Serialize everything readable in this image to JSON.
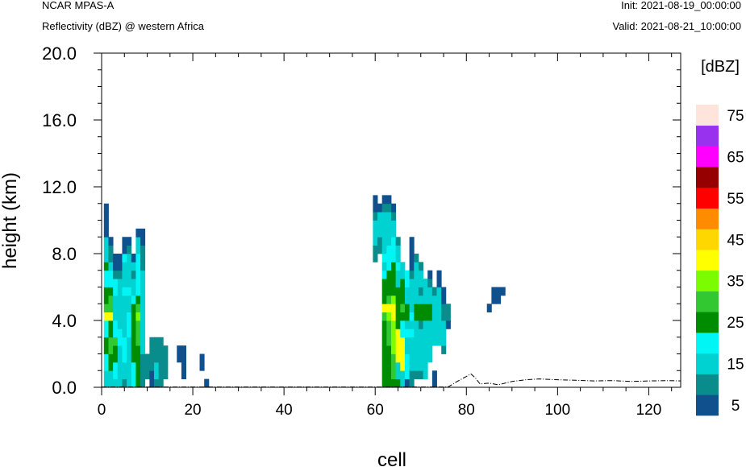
{
  "header": {
    "left_line1": "NCAR MPAS-A",
    "left_line2": "Reflectivity (dBZ) @ western Africa",
    "right_line1": "Init: 2021-08-19_00:00:00",
    "right_line2": "Valid: 2021-08-21_10:00:00"
  },
  "chart_data": {
    "type": "heatmap",
    "title": "Reflectivity (dBZ) @ western Africa",
    "xlabel": "cell",
    "ylabel": "height (km)",
    "xlim": [
      0,
      127
    ],
    "ylim": [
      0,
      20
    ],
    "x_ticks": [
      "0",
      "20",
      "40",
      "60",
      "80",
      "100",
      "120"
    ],
    "y_ticks": [
      "0.0",
      "4.0",
      "8.0",
      "12.0",
      "16.0",
      "20.0"
    ],
    "colorbar": {
      "title": "[dBZ]",
      "levels": [
        5,
        10,
        15,
        20,
        25,
        30,
        35,
        40,
        45,
        50,
        55,
        60,
        65,
        70,
        75
      ],
      "labels": [
        "5",
        "15",
        "25",
        "35",
        "45",
        "55",
        "65",
        "75"
      ],
      "colors": [
        "#10508c",
        "#088c8c",
        "#00d2d2",
        "#00f5f5",
        "#008c00",
        "#32c832",
        "#7cfc00",
        "#ffff00",
        "#ffd700",
        "#ff8c00",
        "#ff0000",
        "#960000",
        "#ff00ff",
        "#9932ee",
        "#ffe4dc"
      ]
    },
    "cell_height_km": 0.5,
    "columns": [
      {
        "x": 1,
        "bottom": 0,
        "levels": [
          3,
          3,
          4,
          4,
          5,
          5,
          4,
          4,
          8,
          6,
          5,
          5,
          4,
          4,
          5,
          3,
          3,
          3,
          1,
          1,
          1,
          1
        ]
      },
      {
        "x": 2,
        "bottom": 0,
        "levels": [
          3,
          3,
          5,
          5,
          6,
          6,
          5,
          5,
          8,
          6,
          6,
          5,
          4,
          4,
          3,
          2,
          2,
          1
        ]
      },
      {
        "x": 3,
        "bottom": 0,
        "levels": [
          3,
          4,
          4,
          5,
          5,
          6,
          4,
          4,
          3,
          3,
          3,
          4,
          4,
          2,
          1,
          1
        ]
      },
      {
        "x": 4,
        "bottom": 0,
        "levels": [
          3,
          3,
          3,
          3,
          3,
          4,
          4,
          3,
          3,
          3,
          3,
          3,
          3,
          2,
          1,
          1
        ]
      },
      {
        "x": 5,
        "bottom": 0,
        "levels": [
          2,
          3,
          3,
          4,
          4,
          4,
          3,
          3,
          3,
          3,
          3,
          4,
          3,
          3,
          3,
          4,
          1,
          1
        ]
      },
      {
        "x": 6,
        "bottom": 0,
        "levels": [
          3,
          3,
          3,
          3,
          3,
          3,
          4,
          4,
          4,
          3,
          3,
          4,
          3,
          3,
          3,
          3,
          2,
          1
        ]
      },
      {
        "x": 7,
        "bottom": 0,
        "levels": [
          4,
          4,
          4,
          5,
          5,
          5,
          5,
          5,
          5,
          5,
          4,
          3,
          3,
          2,
          3,
          1
        ]
      },
      {
        "x": 8,
        "bottom": 0,
        "levels": [
          5,
          5,
          5,
          5,
          5,
          6,
          6,
          6,
          7,
          6,
          5,
          4,
          4,
          4,
          4,
          4,
          3,
          3,
          1
        ]
      },
      {
        "x": 9,
        "bottom": 0,
        "levels": [
          2,
          2,
          2,
          2,
          3,
          3,
          3,
          3,
          3,
          3,
          3,
          3,
          3,
          3,
          2,
          2,
          2,
          1,
          1
        ]
      },
      {
        "x": 10,
        "bottom": 1,
        "levels": [
          2,
          2,
          2
        ]
      },
      {
        "x": 11,
        "bottom": 0,
        "levels": [
          1,
          1,
          2,
          2,
          2,
          2
        ]
      },
      {
        "x": 12,
        "bottom": 0,
        "levels": [
          2,
          3,
          3,
          2,
          2,
          2
        ]
      },
      {
        "x": 13,
        "bottom": 0,
        "levels": [
          2,
          2,
          2,
          2,
          2,
          2
        ]
      },
      {
        "x": 14,
        "bottom": 1,
        "levels": [
          2,
          2,
          2,
          2
        ]
      },
      {
        "x": 17,
        "bottom": 3,
        "levels": [
          1,
          1
        ]
      },
      {
        "x": 18,
        "bottom": 1,
        "levels": [
          1,
          1,
          1,
          1
        ]
      },
      {
        "x": 22,
        "bottom": 2,
        "levels": [
          1,
          1
        ]
      },
      {
        "x": 23,
        "bottom": 0,
        "levels": [
          1
        ]
      },
      {
        "x": 60,
        "bottom": 15,
        "levels": [
          2,
          2,
          3,
          3,
          3,
          2,
          1,
          1
        ]
      },
      {
        "x": 61,
        "bottom": 16,
        "levels": [
          2,
          2,
          3,
          3,
          3,
          1
        ]
      },
      {
        "x": 62,
        "bottom": 0,
        "levels": [
          5,
          5,
          5,
          5,
          5,
          5,
          5,
          5,
          6,
          8,
          5,
          5,
          5,
          4,
          3,
          4,
          3,
          3,
          3,
          3,
          3,
          2,
          1
        ]
      },
      {
        "x": 63,
        "bottom": 0,
        "levels": [
          5,
          5,
          5,
          5,
          5,
          6,
          6,
          6,
          7,
          8,
          6,
          5,
          5,
          5,
          4,
          4,
          4,
          3,
          3,
          3,
          3,
          2,
          1
        ]
      },
      {
        "x": 64,
        "bottom": 0,
        "levels": [
          5,
          6,
          6,
          6,
          7,
          7,
          7,
          7,
          8,
          8,
          7,
          5,
          5,
          5,
          5,
          4,
          4,
          4,
          3,
          3,
          2,
          1
        ]
      },
      {
        "x": 65,
        "bottom": 0,
        "levels": [
          5,
          3,
          3,
          8,
          8,
          8,
          8,
          5,
          5,
          5,
          5,
          5,
          3,
          3,
          4,
          3,
          3,
          2
        ]
      },
      {
        "x": 66,
        "bottom": 0,
        "levels": [
          3,
          3,
          8,
          8,
          8,
          8,
          4,
          4,
          5,
          6,
          5,
          5,
          5,
          3,
          3
        ]
      },
      {
        "x": 67,
        "bottom": 0,
        "levels": [
          1,
          4,
          4,
          4,
          3,
          3,
          4,
          3,
          5,
          5,
          3,
          3,
          4,
          4
        ]
      },
      {
        "x": 68,
        "bottom": 0,
        "levels": [
          2,
          2,
          3,
          3,
          3,
          3,
          4,
          3,
          4,
          3,
          3,
          3,
          3,
          2,
          1,
          1,
          1,
          1
        ]
      },
      {
        "x": 69,
        "bottom": 0,
        "levels": [
          0,
          2,
          3,
          3,
          3,
          3,
          3,
          3,
          5,
          5,
          3,
          3,
          3,
          3,
          3,
          2
        ]
      },
      {
        "x": 70,
        "bottom": 1,
        "levels": [
          2,
          3,
          3,
          3,
          3,
          3,
          2,
          5,
          5,
          3,
          2,
          3,
          3,
          2
        ]
      },
      {
        "x": 71,
        "bottom": 1,
        "levels": [
          3,
          3,
          3,
          3,
          3,
          3,
          3,
          5,
          5,
          3,
          3,
          3
        ]
      },
      {
        "x": 72,
        "bottom": 3,
        "levels": [
          3,
          3,
          3,
          3,
          3,
          5,
          5,
          3,
          3,
          2,
          1
        ]
      },
      {
        "x": 73,
        "bottom": 0,
        "levels": [
          1,
          1,
          0,
          0,
          0,
          3,
          3,
          3,
          3,
          3,
          3,
          2
        ]
      },
      {
        "x": 74,
        "bottom": 5,
        "levels": [
          3,
          3,
          3,
          3,
          3,
          3,
          3,
          1,
          1
        ]
      },
      {
        "x": 75,
        "bottom": 4,
        "levels": [
          2,
          3,
          3,
          3,
          2,
          2,
          1,
          1
        ]
      },
      {
        "x": 76,
        "bottom": 7,
        "levels": [
          1,
          2,
          2
        ]
      },
      {
        "x": 85,
        "bottom": 9,
        "levels": [
          1
        ]
      },
      {
        "x": 86,
        "bottom": 10,
        "levels": [
          1,
          1
        ]
      },
      {
        "x": 87,
        "bottom": 10,
        "levels": [
          1,
          1
        ]
      },
      {
        "x": 88,
        "bottom": 11,
        "levels": [
          1
        ]
      }
    ],
    "terrain": [
      [
        0,
        0.02
      ],
      [
        76,
        0.02
      ],
      [
        78,
        0.35
      ],
      [
        80,
        0.65
      ],
      [
        81,
        0.8
      ],
      [
        82,
        0.55
      ],
      [
        83,
        0.2
      ],
      [
        85,
        0.25
      ],
      [
        87,
        0.15
      ],
      [
        90,
        0.35
      ],
      [
        93,
        0.45
      ],
      [
        96,
        0.5
      ],
      [
        100,
        0.45
      ],
      [
        104,
        0.42
      ],
      [
        108,
        0.38
      ],
      [
        112,
        0.4
      ],
      [
        116,
        0.35
      ],
      [
        120,
        0.38
      ],
      [
        124,
        0.4
      ],
      [
        127,
        0.38
      ]
    ]
  }
}
